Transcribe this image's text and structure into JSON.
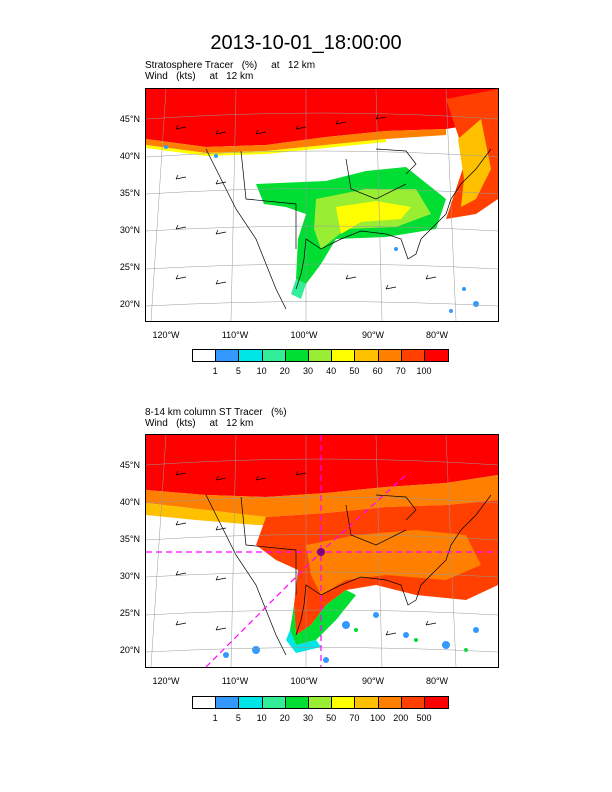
{
  "title": "2013-10-01_18:00:00",
  "colors": {
    "red": "#ff0000",
    "orangered": "#ff4000",
    "orange": "#ff8000",
    "amber": "#ffc000",
    "yellow": "#ffff00",
    "lime": "#99ee33",
    "green": "#00dd33",
    "teal": "#33ee99",
    "cyan": "#00e5e5",
    "blue": "#3399ff",
    "white": "#ffffff"
  },
  "panels": [
    {
      "line1": "Stratosphere Tracer   (%)     at   12 km",
      "line2": "Wind   (kts)     at   12 km",
      "lat_labels": [
        "45°N",
        "40°N",
        "35°N",
        "30°N",
        "25°N",
        "20°N"
      ],
      "lon_labels": [
        "120°W",
        "110°W",
        "100°W",
        "90°W",
        "80°W"
      ],
      "colorbar_labels": [
        "1",
        "5",
        "10",
        "20",
        "30",
        "40",
        "50",
        "60",
        "70",
        "100"
      ],
      "colorbar_colors": [
        "#ffffff",
        "#3399ff",
        "#00e5e5",
        "#33ee99",
        "#00dd33",
        "#99ee33",
        "#ffff00",
        "#ffc000",
        "#ff8000",
        "#ff4000",
        "#ff0000"
      ]
    },
    {
      "line1": "8-14 km column ST Tracer   (%)",
      "line2": "Wind   (kts)     at   12 km",
      "lat_labels": [
        "45°N",
        "40°N",
        "35°N",
        "30°N",
        "25°N",
        "20°N"
      ],
      "lon_labels": [
        "120°W",
        "110°W",
        "100°W",
        "90°W",
        "80°W"
      ],
      "colorbar_labels": [
        "1",
        "5",
        "10",
        "20",
        "30",
        "50",
        "70",
        "100",
        "200",
        "500"
      ],
      "colorbar_colors": [
        "#ffffff",
        "#3399ff",
        "#00e5e5",
        "#33ee99",
        "#00dd33",
        "#99ee33",
        "#ffff00",
        "#ffc000",
        "#ff8000",
        "#ff4000",
        "#ff0000"
      ]
    }
  ]
}
